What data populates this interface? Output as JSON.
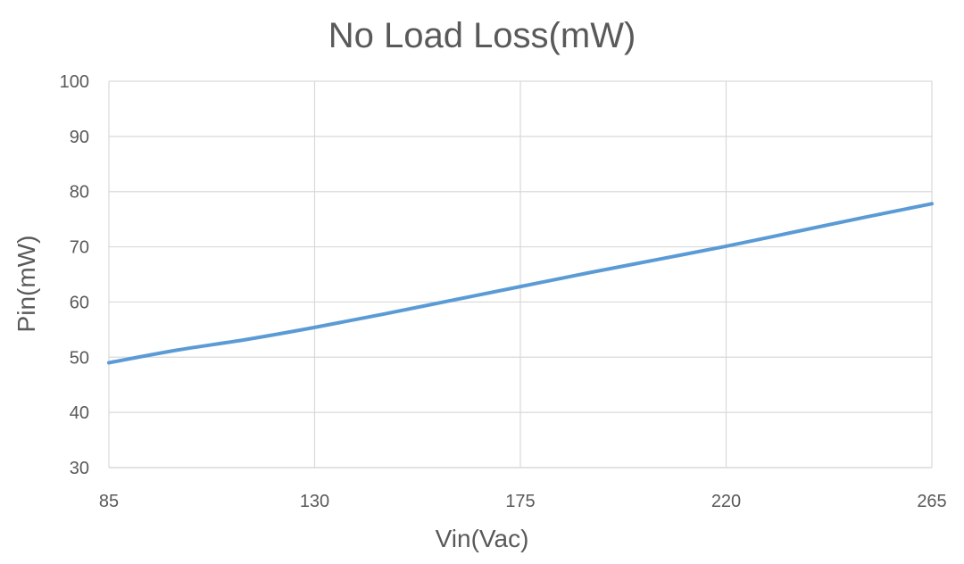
{
  "chart_data": {
    "type": "line",
    "title": "No Load Loss(mW)",
    "xlabel": "Vin(Vac)",
    "ylabel": "Pin(mW)",
    "xlim": [
      85,
      265
    ],
    "ylim": [
      30,
      100
    ],
    "x_ticks": [
      85,
      130,
      175,
      220,
      265
    ],
    "y_ticks": [
      30,
      40,
      50,
      60,
      70,
      80,
      90,
      100
    ],
    "grid": true,
    "legend": null,
    "series": [
      {
        "name": "Pin",
        "color": "#5B9BD5",
        "x": [
          85,
          100,
          115,
          130,
          145,
          160,
          175,
          190,
          205,
          220,
          235,
          250,
          265
        ],
        "y": [
          49.0,
          51.3,
          53.2,
          55.4,
          57.8,
          60.3,
          62.8,
          65.3,
          67.7,
          70.1,
          72.7,
          75.3,
          77.8
        ]
      }
    ]
  },
  "colors": {
    "line": "#5B9BD5",
    "grid": "#D9D9D9",
    "text": "#595959"
  }
}
